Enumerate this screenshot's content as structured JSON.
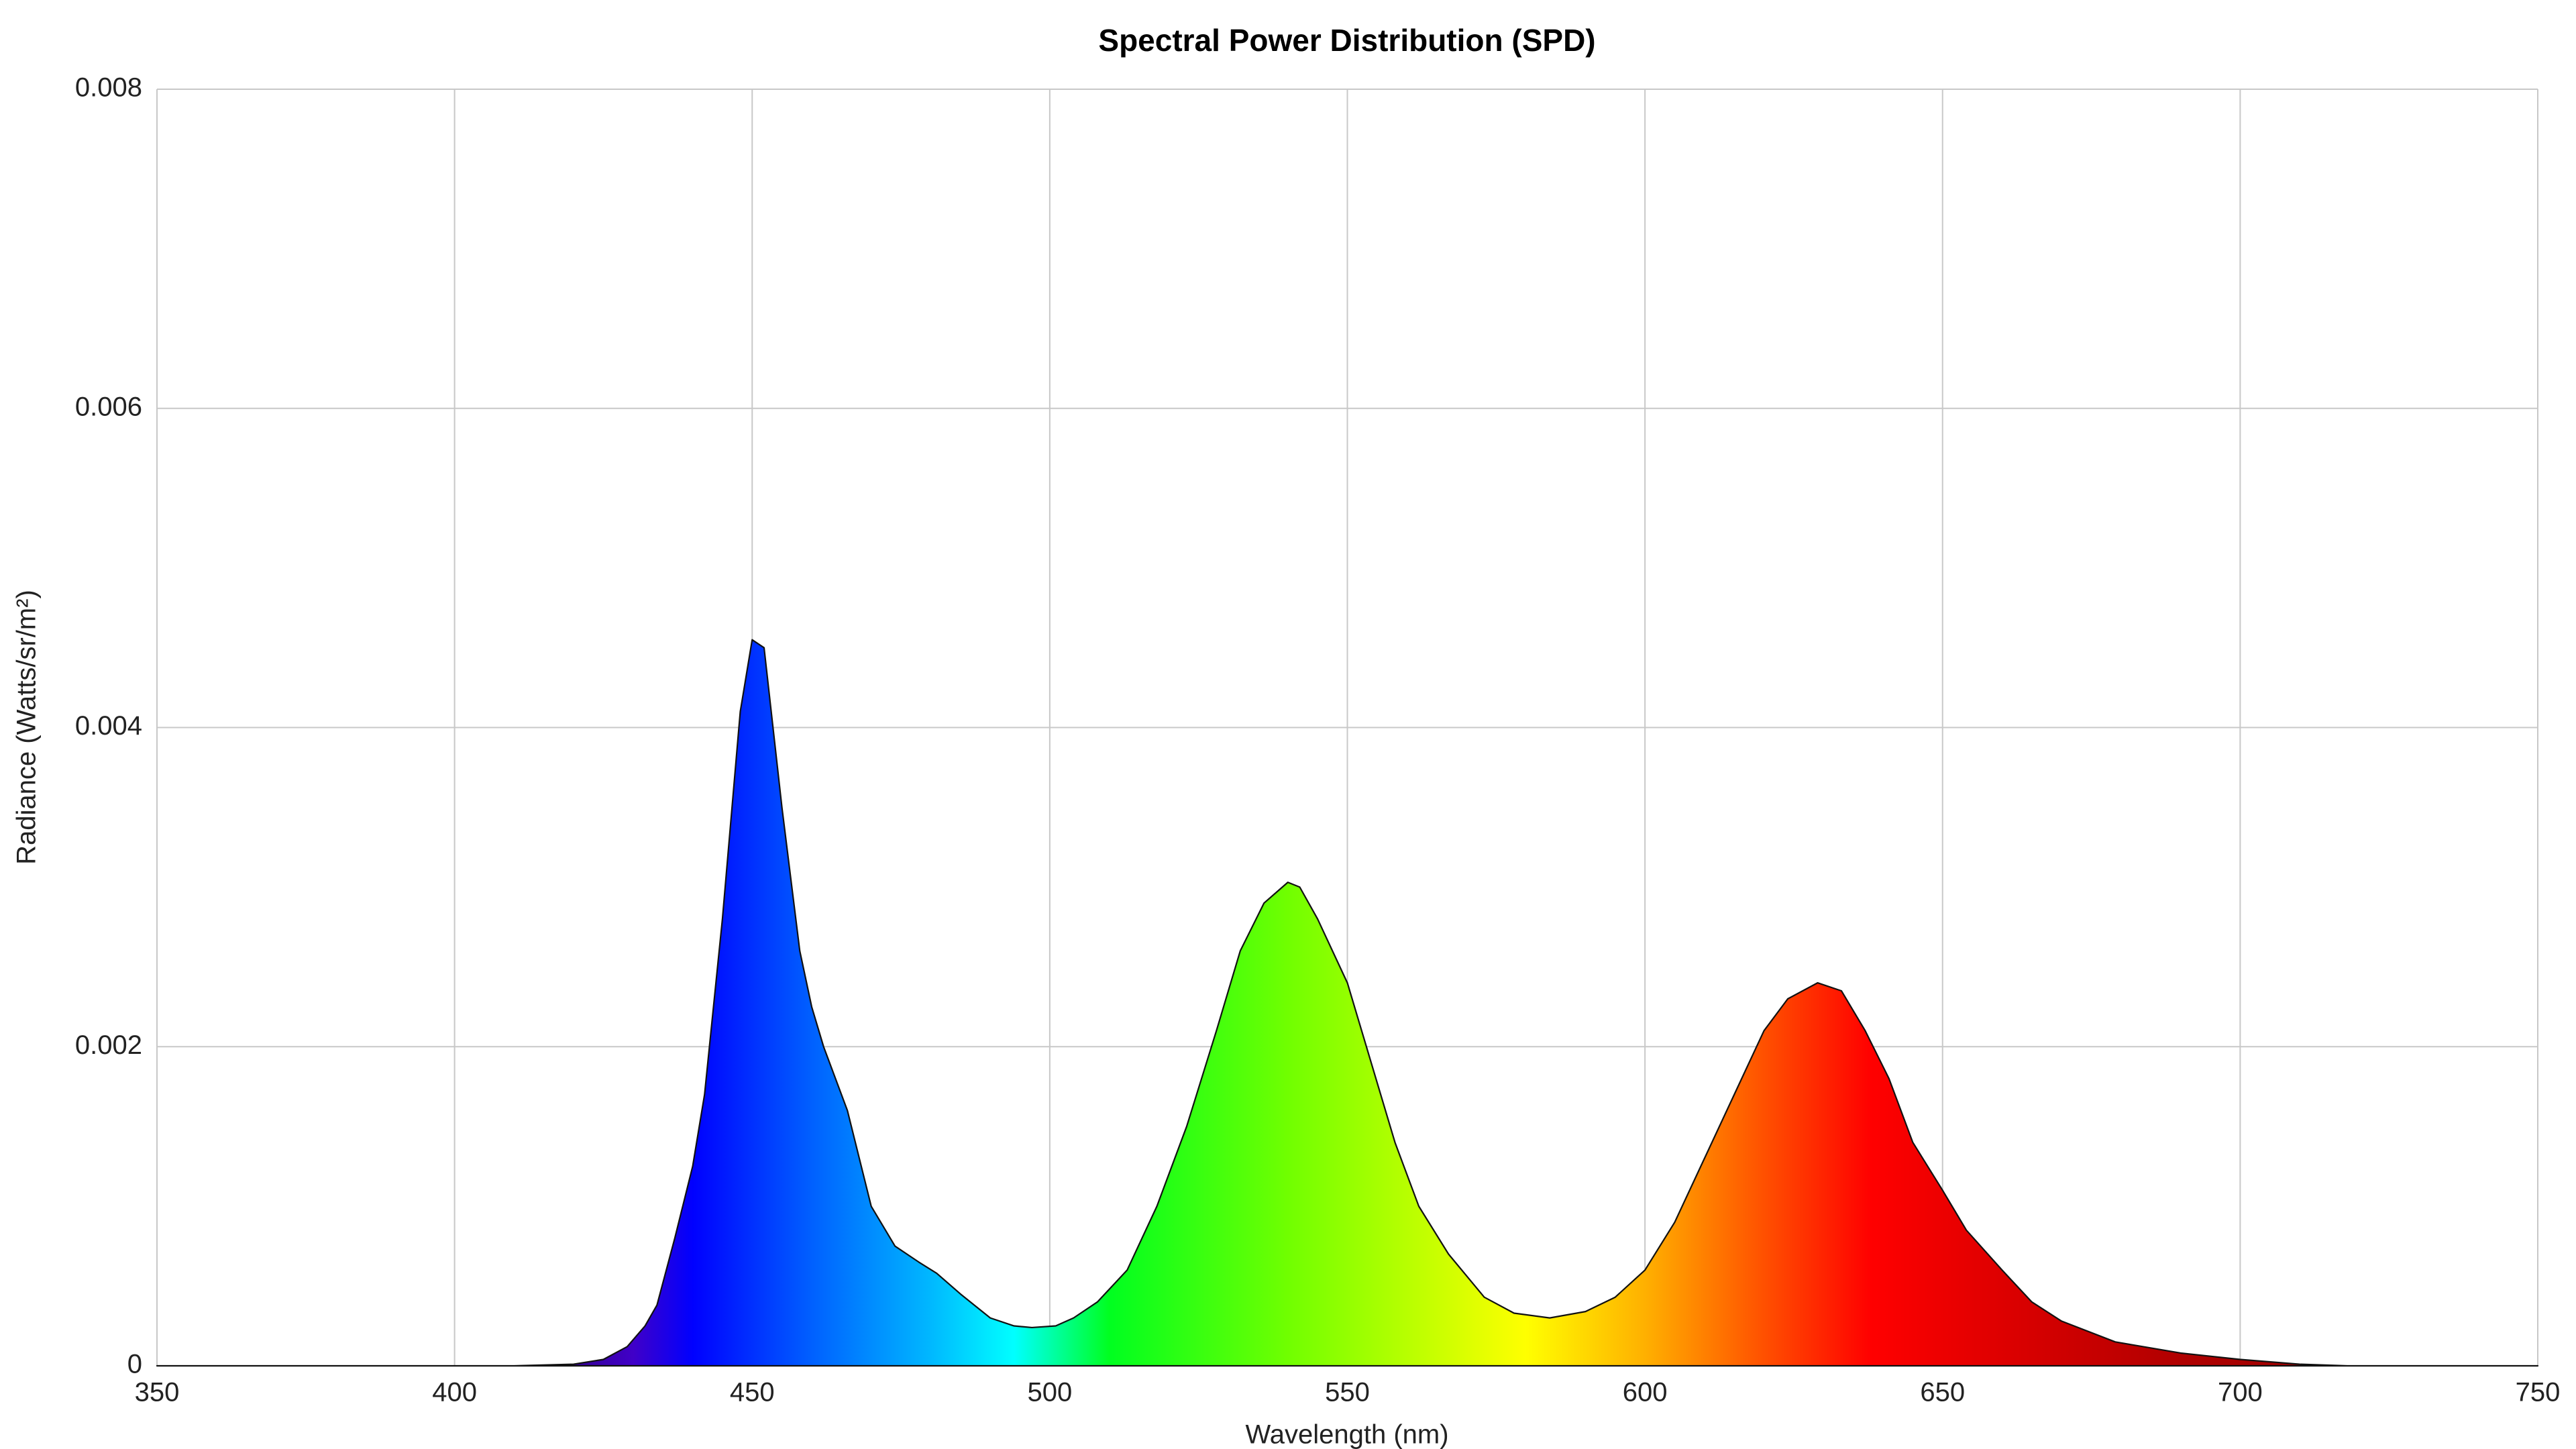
{
  "chart_data": {
    "type": "area",
    "title": "Spectral Power Distribution (SPD)",
    "x_label": "Wavelength (nm)",
    "y_label": "Radiance (Watts/sr/m²)",
    "x": [
      350,
      410,
      420,
      425,
      429,
      432,
      434,
      437,
      440,
      442,
      445,
      448,
      450,
      452,
      455,
      458,
      460,
      462,
      466,
      470,
      474,
      478,
      481,
      485,
      490,
      494,
      497,
      501,
      504,
      508,
      513,
      518,
      523,
      528,
      532,
      536,
      540,
      542,
      545,
      550,
      554,
      558,
      562,
      567,
      573,
      578,
      584,
      590,
      595,
      600,
      605,
      610,
      615,
      620,
      624,
      629,
      633,
      637,
      641,
      645,
      650,
      654,
      660,
      665,
      670,
      679,
      690,
      700,
      710,
      718,
      750
    ],
    "values": [
      0,
      0,
      1e-05,
      4e-05,
      0.00012,
      0.00025,
      0.00038,
      0.0008,
      0.00125,
      0.0017,
      0.0028,
      0.0041,
      0.00455,
      0.0045,
      0.0035,
      0.0026,
      0.00225,
      0.002,
      0.0016,
      0.001,
      0.00075,
      0.00065,
      0.00058,
      0.00045,
      0.0003,
      0.00025,
      0.00024,
      0.00025,
      0.0003,
      0.0004,
      0.0006,
      0.001,
      0.0015,
      0.0021,
      0.0026,
      0.0029,
      0.00303,
      0.003,
      0.0028,
      0.0024,
      0.0019,
      0.0014,
      0.001,
      0.0007,
      0.00043,
      0.00033,
      0.0003,
      0.00034,
      0.00043,
      0.0006,
      0.0009,
      0.0013,
      0.0017,
      0.0021,
      0.0023,
      0.0024,
      0.00235,
      0.0021,
      0.0018,
      0.0014,
      0.0011,
      0.00085,
      0.0006,
      0.0004,
      0.00028,
      0.00015,
      8e-05,
      4e-05,
      1e-05,
      0,
      0
    ],
    "xlim": [
      350,
      750
    ],
    "xticks": [
      350,
      400,
      450,
      500,
      550,
      600,
      650,
      700,
      750
    ],
    "ylim": [
      0,
      0.008
    ],
    "yticks": [
      0,
      0.002,
      0.004,
      0.006,
      0.008
    ],
    "grid": true
  }
}
